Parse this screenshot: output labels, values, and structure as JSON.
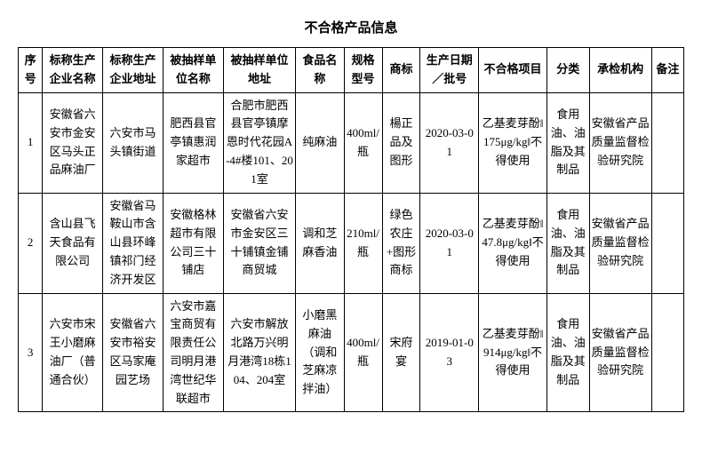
{
  "title": "不合格产品信息",
  "columns": [
    {
      "label": "序号",
      "width": 24
    },
    {
      "label": "标称生产企业名称",
      "width": 60
    },
    {
      "label": "标称生产企业地址",
      "width": 60
    },
    {
      "label": "被抽样单位名称",
      "width": 60
    },
    {
      "label": "被抽样单位地址",
      "width": 72
    },
    {
      "label": "食品名称",
      "width": 48
    },
    {
      "label": "规格型号",
      "width": 38
    },
    {
      "label": "商标",
      "width": 38
    },
    {
      "label": "生产日期／批号",
      "width": 58
    },
    {
      "label": "不合格项目",
      "width": 68
    },
    {
      "label": "分类",
      "width": 42
    },
    {
      "label": "承检机构",
      "width": 62
    },
    {
      "label": "备注",
      "width": 32
    }
  ],
  "rows": [
    [
      "1",
      "安徽省六安市金安区马头正品麻油厂",
      "六安市马头镇街道",
      "肥西县官亭镇惠润家超市",
      "合肥市肥西县官亭镇摩恩时代花园A-4#楼101、201室",
      "纯麻油",
      "400ml/瓶",
      "楊正品及图形",
      "2020-03-01",
      "乙基麦芽酚‖175μg/kg‖不得使用",
      "食用油、油脂及其制品",
      "安徽省产品质量监督检验研究院",
      ""
    ],
    [
      "2",
      "含山县飞天食品有限公司",
      "安徽省马鞍山市含山县环峰镇祁门经济开发区",
      "安徽格林超市有限公司三十铺店",
      "安徽省六安市金安区三十铺镇金铺商贸城",
      "调和芝麻香油",
      "210ml/瓶",
      "绿色农庄+图形商标",
      "2020-03-01",
      "乙基麦芽酚‖47.8μg/kg‖不得使用",
      "食用油、油脂及其制品",
      "安徽省产品质量监督检验研究院",
      ""
    ],
    [
      "3",
      "六安市宋王小磨麻油厂（普通合伙）",
      "安徽省六安市裕安区马家庵园艺场",
      "六安市嘉宝商贸有限责任公司明月港湾世纪华联超市",
      "六安市解放北路万兴明月港湾18栋104、204室",
      "小磨黑麻油（调和芝麻凉拌油）",
      "400ml/瓶",
      "宋府宴",
      "2019-01-03",
      "乙基麦芽酚‖914μg/kg‖不得使用",
      "食用油、油脂及其制品",
      "安徽省产品质量监督检验研究院",
      ""
    ]
  ],
  "style": {
    "border_color": "#000000",
    "background": "#ffffff",
    "text_color": "#000000",
    "font_size_body": 13,
    "font_size_title": 15
  }
}
